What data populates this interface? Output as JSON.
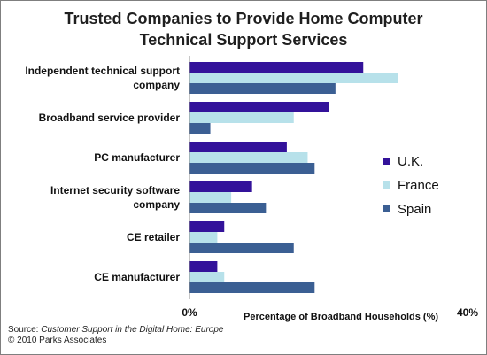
{
  "chart_data": {
    "type": "bar",
    "orientation": "horizontal",
    "title": "Trusted Companies to Provide Home Computer Technical Support Services",
    "title_lines": [
      "Trusted Companies to Provide Home Computer",
      "Technical Support Services"
    ],
    "xlabel": "Percentage of Broadband Households (%)",
    "xlim": [
      0,
      40
    ],
    "x_ticks": [
      "0%",
      "40%"
    ],
    "categories": [
      "Independent technical support company",
      "Broadband service provider",
      "PC manufacturer",
      "Internet security software company",
      "CE retailer",
      "CE manufacturer"
    ],
    "category_lines": [
      [
        "Independent technical support",
        "company"
      ],
      [
        "Broadband service provider"
      ],
      [
        "PC manufacturer"
      ],
      [
        "Internet security software",
        "company"
      ],
      [
        "CE retailer"
      ],
      [
        "CE manufacturer"
      ]
    ],
    "series": [
      {
        "name": "U.K.",
        "color": "#33129a",
        "values": [
          25,
          20,
          14,
          9,
          5,
          4
        ]
      },
      {
        "name": "France",
        "color": "#b7e1ea",
        "values": [
          30,
          15,
          17,
          6,
          4,
          5
        ]
      },
      {
        "name": "Spain",
        "color": "#3b5f93",
        "values": [
          21,
          3,
          18,
          11,
          15,
          18
        ]
      }
    ],
    "grid": false,
    "legend_position": "right"
  },
  "source": {
    "prefix": "Source: ",
    "title": "Customer Support in the Digital Home: Europe",
    "copyright": "© 2010 Parks Associates"
  }
}
